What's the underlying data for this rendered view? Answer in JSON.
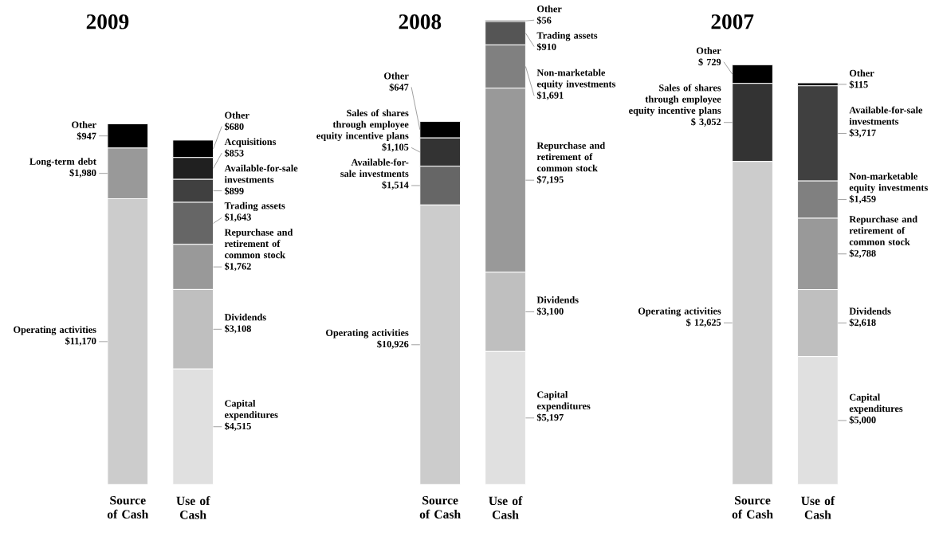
{
  "chart_data": [
    {
      "type": "bar",
      "stacked": true,
      "title": "2009",
      "categories": [
        "Source of Cash",
        "Use of Cash"
      ],
      "tick_labels": "x",
      "series": [
        {
          "name": "Operating activities",
          "color": "#cccccc",
          "values": [
            11170,
            null
          ],
          "value_labels": [
            "$11,170",
            null
          ]
        },
        {
          "name": "Long-term debt",
          "color": "#999999",
          "values": [
            1980,
            null
          ],
          "value_labels": [
            "$1,980",
            null
          ]
        },
        {
          "name": "Other",
          "color": "#000000",
          "values": [
            947,
            null
          ],
          "value_labels": [
            "$947",
            null
          ]
        },
        {
          "name": "Capital expenditures",
          "color": "#e0e0e0",
          "values": [
            null,
            4515
          ],
          "value_labels": [
            null,
            "$4,515"
          ]
        },
        {
          "name": "Dividends",
          "color": "#bfbfbf",
          "values": [
            null,
            3108
          ],
          "value_labels": [
            null,
            "$3,108"
          ]
        },
        {
          "name": "Repurchase and retirement of common stock",
          "color": "#999999",
          "values": [
            null,
            1762
          ],
          "value_labels": [
            null,
            "$1,762"
          ]
        },
        {
          "name": "Trading assets",
          "color": "#666666",
          "values": [
            null,
            1643
          ],
          "value_labels": [
            null,
            "$1,643"
          ]
        },
        {
          "name": "Available-for-sale investments",
          "color": "#404040",
          "values": [
            null,
            899
          ],
          "value_labels": [
            null,
            "$899"
          ]
        },
        {
          "name": "Acquisitions",
          "color": "#202020",
          "values": [
            null,
            853
          ],
          "value_labels": [
            null,
            "$853"
          ]
        },
        {
          "name": "Other",
          "color": "#000000",
          "values": [
            null,
            680
          ],
          "value_labels": [
            null,
            "$680"
          ]
        }
      ]
    },
    {
      "type": "bar",
      "stacked": true,
      "title": "2008",
      "categories": [
        "Source of Cash",
        "Use of Cash"
      ],
      "tick_labels": "x",
      "series": [
        {
          "name": "Operating activities",
          "color": "#cccccc",
          "values": [
            10926,
            null
          ],
          "value_labels": [
            "$10,926",
            null
          ]
        },
        {
          "name": "Available-for-sale investments",
          "color": "#666666",
          "values": [
            1514,
            null
          ],
          "value_labels": [
            "$1,514",
            null
          ]
        },
        {
          "name": "Sales of shares through employee equity incentive plans",
          "color": "#333333",
          "values": [
            1105,
            null
          ],
          "value_labels": [
            "$1,105",
            null
          ]
        },
        {
          "name": "Other",
          "color": "#000000",
          "values": [
            647,
            null
          ],
          "value_labels": [
            "$647",
            null
          ]
        },
        {
          "name": "Capital expenditures",
          "color": "#e0e0e0",
          "values": [
            null,
            5197
          ],
          "value_labels": [
            null,
            "$5,197"
          ]
        },
        {
          "name": "Dividends",
          "color": "#bfbfbf",
          "values": [
            null,
            3100
          ],
          "value_labels": [
            null,
            "$3,100"
          ]
        },
        {
          "name": "Repurchase and retirement of common stock",
          "color": "#999999",
          "values": [
            null,
            7195
          ],
          "value_labels": [
            null,
            "$7,195"
          ]
        },
        {
          "name": "Non-marketable equity investments",
          "color": "#808080",
          "values": [
            null,
            1691
          ],
          "value_labels": [
            null,
            "$1,691"
          ]
        },
        {
          "name": "Trading assets",
          "color": "#555555",
          "values": [
            null,
            910
          ],
          "value_labels": [
            null,
            "$910"
          ]
        },
        {
          "name": "Other",
          "color": "#222222",
          "values": [
            null,
            56
          ],
          "value_labels": [
            null,
            "$56"
          ]
        }
      ]
    },
    {
      "type": "bar",
      "stacked": true,
      "title": "2007",
      "categories": [
        "Source of Cash",
        "Use of Cash"
      ],
      "tick_labels": "x",
      "series": [
        {
          "name": "Operating activities",
          "color": "#cccccc",
          "values": [
            12625,
            null
          ],
          "value_labels": [
            "$ 12,625",
            null
          ]
        },
        {
          "name": "Sales of shares through employee equity incentive plans",
          "color": "#333333",
          "values": [
            3052,
            null
          ],
          "value_labels": [
            "$ 3,052",
            null
          ]
        },
        {
          "name": "Other",
          "color": "#000000",
          "values": [
            729,
            null
          ],
          "value_labels": [
            "$ 729",
            null
          ]
        },
        {
          "name": "Capital expenditures",
          "color": "#e0e0e0",
          "values": [
            null,
            5000
          ],
          "value_labels": [
            null,
            "$5,000"
          ]
        },
        {
          "name": "Dividends",
          "color": "#bfbfbf",
          "values": [
            null,
            2618
          ],
          "value_labels": [
            null,
            "$2,618"
          ]
        },
        {
          "name": "Repurchase and retirement of common stock",
          "color": "#999999",
          "values": [
            null,
            2788
          ],
          "value_labels": [
            null,
            "$2,788"
          ]
        },
        {
          "name": "Non-marketable equity investments",
          "color": "#808080",
          "values": [
            null,
            1459
          ],
          "value_labels": [
            null,
            "$1,459"
          ]
        },
        {
          "name": "Available-for-sale investments",
          "color": "#404040",
          "values": [
            null,
            3717
          ],
          "value_labels": [
            null,
            "$3,717"
          ]
        },
        {
          "name": "Other",
          "color": "#000000",
          "values": [
            null,
            115
          ],
          "value_labels": [
            null,
            "$115"
          ]
        }
      ]
    }
  ]
}
